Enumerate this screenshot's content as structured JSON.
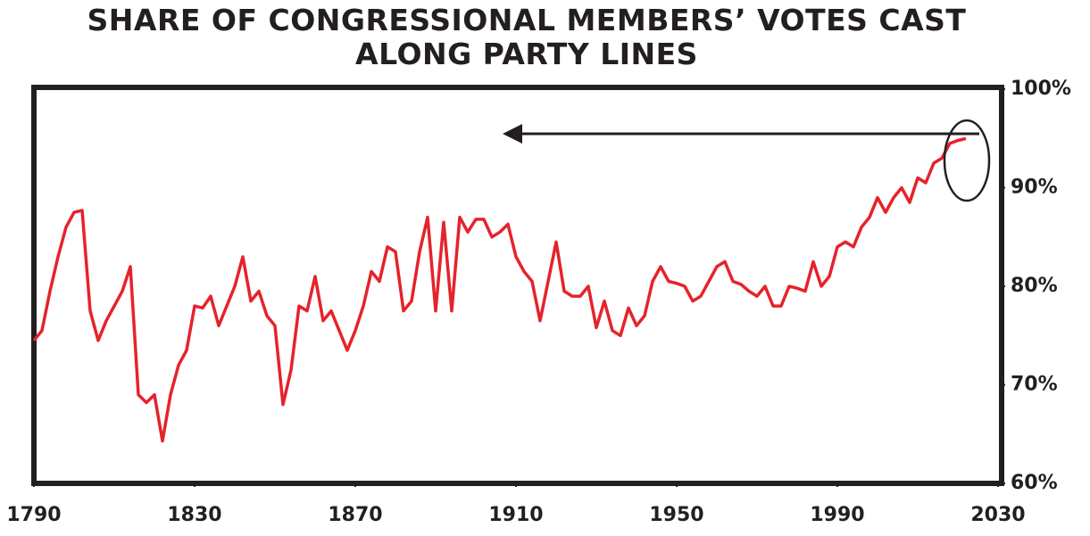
{
  "chart_data": {
    "type": "line",
    "title": "SHARE OF CONGRESSIONAL MEMBERS’ VOTES CAST ALONG PARTY LINES",
    "x": [
      1790,
      1792,
      1794,
      1796,
      1798,
      1800,
      1802,
      1804,
      1806,
      1808,
      1810,
      1812,
      1814,
      1816,
      1818,
      1820,
      1822,
      1824,
      1826,
      1828,
      1830,
      1832,
      1834,
      1836,
      1838,
      1840,
      1842,
      1844,
      1846,
      1848,
      1850,
      1852,
      1854,
      1856,
      1858,
      1860,
      1862,
      1864,
      1866,
      1868,
      1870,
      1872,
      1874,
      1876,
      1878,
      1880,
      1882,
      1884,
      1886,
      1888,
      1890,
      1892,
      1894,
      1896,
      1898,
      1900,
      1902,
      1904,
      1906,
      1908,
      1910,
      1912,
      1914,
      1916,
      1918,
      1920,
      1922,
      1924,
      1926,
      1928,
      1930,
      1932,
      1934,
      1936,
      1938,
      1940,
      1942,
      1944,
      1946,
      1948,
      1950,
      1952,
      1954,
      1956,
      1958,
      1960,
      1962,
      1964,
      1966,
      1968,
      1970,
      1972,
      1974,
      1976,
      1978,
      1980,
      1982,
      1984,
      1986,
      1988,
      1990,
      1992,
      1994,
      1996,
      1998,
      2000,
      2002,
      2004,
      2006,
      2008,
      2010,
      2012,
      2014,
      2016,
      2018,
      2020,
      2022
    ],
    "values": [
      74.5,
      75.5,
      79.5,
      83,
      86,
      87.5,
      87.7,
      77.5,
      74.5,
      76.5,
      78,
      79.5,
      82,
      69,
      68.2,
      69,
      64.3,
      69,
      72,
      73.5,
      78,
      77.8,
      79,
      76,
      78,
      80,
      83,
      78.5,
      79.5,
      77,
      76,
      68,
      71.5,
      78,
      77.5,
      81,
      76.5,
      77.5,
      75.5,
      73.5,
      75.5,
      78,
      81.5,
      80.5,
      84,
      83.5,
      77.5,
      78.5,
      83.5,
      87,
      77.5,
      86.5,
      77.5,
      87,
      85.5,
      86.8,
      86.8,
      85,
      85.5,
      86.3,
      83,
      81.5,
      80.5,
      76.5,
      80.5,
      84.5,
      79.5,
      79,
      79,
      80,
      75.8,
      78.5,
      75.5,
      75,
      77.8,
      76,
      77,
      80.5,
      82,
      80.5,
      80.3,
      80,
      78.5,
      79,
      80.5,
      82,
      82.5,
      80.5,
      80.2,
      79.5,
      79,
      80,
      78,
      78,
      80,
      79.8,
      79.5,
      82.5,
      80,
      81,
      84,
      84.5,
      84,
      86,
      87,
      89,
      87.5,
      89,
      90,
      88.5,
      91,
      90.5,
      92.5,
      93,
      94.5,
      94.8,
      95
    ],
    "color": "#e5232b",
    "xlim": [
      1790,
      2030
    ],
    "xticks": [
      1790,
      1830,
      1870,
      1910,
      1950,
      1990,
      2030
    ],
    "ylim": [
      60,
      100
    ],
    "yticks": [
      {
        "value": 60,
        "label": "60%"
      },
      {
        "value": 70,
        "label": "70%"
      },
      {
        "value": 80,
        "label": "80%"
      },
      {
        "value": 90,
        "label": "90%"
      },
      {
        "value": 100,
        "label": "100%"
      }
    ],
    "grid": false
  }
}
